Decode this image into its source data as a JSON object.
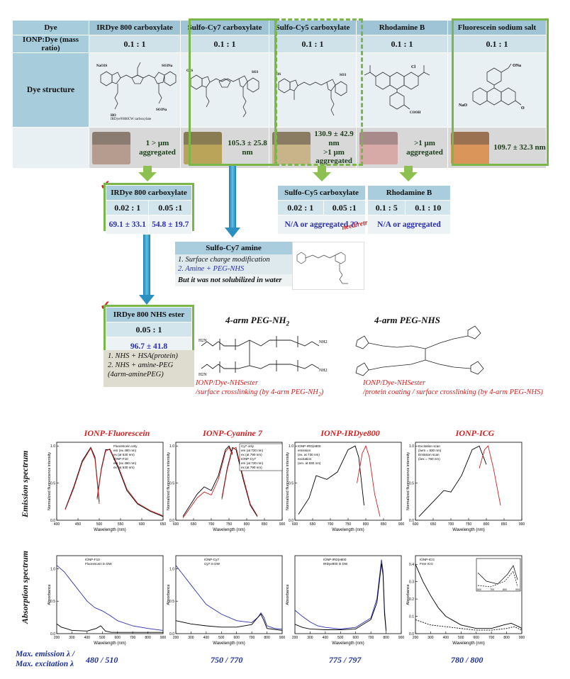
{
  "table": {
    "headers": [
      "Dye",
      "IRDye 800 carboxylate",
      "Sulfo-Cy7 carboxylate",
      "Sulfo-Cy5 carboxylate",
      "Rhodamine  B",
      "Fluorescein sodium salt"
    ],
    "ratio_label": "IONP:Dye  (mass ratio)",
    "ratios": [
      "0.1 : 1",
      "0.1 : 1",
      "0.1 : 1",
      "0.1 : 1",
      "0.1 : 1"
    ],
    "structure_label": "Dye structure",
    "structure_caption": "IRDye®800CW carboxylate",
    "results": [
      [
        "1 > μm",
        "aggregated"
      ],
      [
        "105.3 ± 25.8 nm"
      ],
      [
        "130.9 ± 42.9 nm",
        ">1 μm  aggregated"
      ],
      [
        ">1 μm",
        "aggregated"
      ],
      [
        "109.7 ± 32.3 nm"
      ]
    ],
    "vial_colors": [
      "#b59c8f",
      "#b9a45a",
      "#c9b489",
      "#d7aaa7",
      "#d9955a"
    ]
  },
  "irdye_box": {
    "title": "IRDye  800 carboxylate",
    "ratios": [
      "0.02 : 1",
      "0.05 :1"
    ],
    "values": [
      "69.1 ± 33.1",
      "54.8 ± 19.7"
    ]
  },
  "cy5_box": {
    "title": "Sulfo-Cy5  carboxylate",
    "ratios": [
      "0.02 : 1",
      "0.05 :1"
    ],
    "value": "N/A or aggregated ??",
    "note": "need retry"
  },
  "rhod_box": {
    "title": "Rhodamine  B",
    "ratios": [
      "0.1 : 5",
      "0.1 : 10"
    ],
    "value": "N/A or aggregated"
  },
  "cy7_amine": {
    "title": "Sulfo-Cy7 amine",
    "lines": [
      "1. Surface charge modification",
      "2. Amine + PEG-NHS"
    ],
    "footer": "But it was not solubilized in water"
  },
  "nhs_box": {
    "title": "IRDye  800 NHS ester",
    "ratio": "0.05 : 1",
    "value": "96.7 ± 41.8",
    "notes": [
      "1. NHS + HSA(protein)",
      "2. NHS + amine-PEG",
      "(4arm-aminePEG)"
    ]
  },
  "peg_nh2": {
    "title": "4-arm PEG-NH",
    "sub": "2",
    "caption1": "IONP/Dye-NHSester",
    "caption2": "/surface crosslinking (by 4-arm PEG-NH",
    "caption2_end": ")"
  },
  "peg_nhs": {
    "title": "4-arm PEG-NHS",
    "caption1": "IONP/Dye-NHSester",
    "caption2": "/protein coating / surface crosslinking (by 4-arm PEG-NHS)"
  },
  "row_labels": [
    "Emission spectrum",
    "Absorption spectrum"
  ],
  "plot_titles": [
    "IONP-Fluorescein",
    "IONP-Cyanine 7",
    "IONP-IRDye800",
    "IONP-ICG"
  ],
  "bottom": {
    "label1": "Max. emission λ /",
    "label2": "Max. excitation λ",
    "values": [
      "480 / 510",
      "750 / 770",
      "775 / 797",
      "780 / 800"
    ]
  },
  "colors": {
    "accent_green": "#7ab648",
    "arrow_blue": "#2b8fc0",
    "red": "#d42020",
    "value_blue": "#2a2fb0"
  },
  "chart_data": [
    {
      "type": "line",
      "title": "IONP-Fluorescein",
      "xlabel": "Wavelength (nm)",
      "ylabel": "Normalized fluorescence intensity",
      "xlim": [
        400,
        650
      ],
      "ylim": [
        0,
        1.05
      ],
      "x_ticks": [
        "400",
        "450",
        "500",
        "550",
        "600",
        "650"
      ],
      "y_ticks": [
        "0.0",
        "0.5",
        "1.0"
      ],
      "legend": [
        "Fluorescein only",
        "em (ex 480 nm)",
        "ex (at 530 nm)",
        "IONP-F10",
        "em (ex 480 nm)",
        "ex (at 530 nm)"
      ],
      "series": [
        {
          "name": "em (ex 480 nm)",
          "color": "#000000",
          "x": [
            420,
            440,
            460,
            480,
            490,
            500
          ],
          "y": [
            0.15,
            0.45,
            0.8,
            0.98,
            0.85,
            0.25
          ]
        },
        {
          "name": "ex (at 530 nm)",
          "color": "#000000",
          "x": [
            495,
            505,
            515,
            525,
            545,
            565,
            590,
            620,
            650
          ],
          "y": [
            0.3,
            0.7,
            0.95,
            0.95,
            0.7,
            0.4,
            0.22,
            0.12,
            0.05
          ]
        },
        {
          "name": "em (ex 480 nm)",
          "color": "#cc2020",
          "x": [
            420,
            440,
            460,
            480,
            490,
            500
          ],
          "y": [
            0.14,
            0.43,
            0.78,
            0.97,
            0.82,
            0.22
          ]
        },
        {
          "name": "ex (at 530 nm)",
          "color": "#cc2020",
          "x": [
            495,
            505,
            515,
            525,
            545,
            565,
            590,
            620,
            650
          ],
          "y": [
            0.28,
            0.68,
            0.93,
            0.96,
            0.72,
            0.42,
            0.23,
            0.13,
            0.06
          ]
        }
      ]
    },
    {
      "type": "line",
      "title": "IONP-Cyanine 7",
      "xlabel": "Wavelength (nm)",
      "ylabel": "Normalized fluorescence intensity",
      "xlim": [
        600,
        900
      ],
      "ylim": [
        0,
        1.05
      ],
      "x_ticks": [
        "600",
        "650",
        "700",
        "750",
        "800",
        "850",
        "900"
      ],
      "y_ticks": [
        "0.0",
        "0.5",
        "1.0"
      ],
      "legend": [
        "Cy7 only",
        "em (at 720 nm)",
        "ex (at 790 nm)",
        "IONP-Cy7",
        "em (at 720 nm)",
        "ex (at 790 nm)"
      ],
      "series": [
        {
          "name": "em (at 720 nm)",
          "color": "#000000",
          "x": [
            620,
            660,
            680,
            700,
            720,
            740,
            750,
            760
          ],
          "y": [
            0.05,
            0.35,
            0.45,
            0.4,
            0.6,
            0.95,
            1.0,
            0.9
          ]
        },
        {
          "name": "ex (at 790 nm)",
          "color": "#000000",
          "x": [
            730,
            745,
            760,
            770,
            790,
            810,
            830
          ],
          "y": [
            0.3,
            0.7,
            0.98,
            0.95,
            0.55,
            0.2,
            0.05
          ]
        },
        {
          "name": "em (at 720 nm)",
          "color": "#cc2020",
          "x": [
            620,
            660,
            680,
            700,
            720,
            740,
            750,
            760
          ],
          "y": [
            0.03,
            0.3,
            0.38,
            0.34,
            0.55,
            0.92,
            0.98,
            0.88
          ]
        },
        {
          "name": "ex (at 790 nm)",
          "color": "#cc2020",
          "x": [
            730,
            745,
            760,
            770,
            790,
            810,
            830
          ],
          "y": [
            0.28,
            0.68,
            0.96,
            0.98,
            0.58,
            0.22,
            0.06
          ]
        }
      ]
    },
    {
      "type": "line",
      "title": "IONP-IRDye800",
      "xlabel": "Wavelength (nm)",
      "ylabel": "Normalized fluorescence intensity",
      "xlim": [
        600,
        900
      ],
      "ylim": [
        0,
        1.05
      ],
      "x_ticks": [
        "600",
        "650",
        "700",
        "750",
        "800",
        "850",
        "900"
      ],
      "y_ticks": [
        "0.0",
        "0.5",
        "1.0"
      ],
      "legend": [
        "IONP-IRD(e800",
        "emission",
        "(ex. at 730 nm)",
        "excitation",
        "(em. at 830 nm)"
      ],
      "series": [
        {
          "name": "excitation",
          "color": "#000000",
          "x": [
            610,
            640,
            660,
            690,
            720,
            750,
            770,
            780,
            795
          ],
          "y": [
            0.08,
            0.3,
            0.6,
            0.55,
            0.65,
            0.95,
            1.0,
            0.85,
            0.2
          ]
        },
        {
          "name": "emission",
          "color": "#cc2020",
          "x": [
            775,
            790,
            800,
            810,
            825,
            840
          ],
          "y": [
            0.5,
            0.9,
            1.0,
            0.85,
            0.35,
            0.05
          ]
        }
      ]
    },
    {
      "type": "line",
      "title": "IONP-ICG",
      "xlabel": "Wavelength (nm)",
      "ylabel": "Normalized fluorescence intensity",
      "xlim": [
        600,
        900
      ],
      "ylim": [
        0,
        1.05
      ],
      "x_ticks": [
        "600",
        "650",
        "700",
        "750",
        "800",
        "850",
        "900"
      ],
      "y_ticks": [
        "0.0",
        "0.5",
        "1.0"
      ],
      "legend": [
        "Excitation scan",
        "(λem = 830 nm)",
        "Emission scan",
        "(λex = 760 nm)"
      ],
      "series": [
        {
          "name": "Excitation scan",
          "color": "#000000",
          "x": [
            610,
            650,
            680,
            700,
            730,
            760,
            780,
            800
          ],
          "y": [
            0.05,
            0.25,
            0.4,
            0.38,
            0.6,
            0.95,
            1.0,
            0.75
          ]
        },
        {
          "name": "Emission scan",
          "color": "#cc2020",
          "x": [
            780,
            795,
            805,
            820,
            840
          ],
          "y": [
            0.7,
            0.95,
            1.0,
            0.7,
            0.2
          ]
        }
      ]
    },
    {
      "type": "line",
      "title": "",
      "xlabel": "Wavelength (nm)",
      "ylabel": "Absorbance",
      "xlim": [
        200,
        900
      ],
      "ylim": [
        0,
        1.2
      ],
      "x_ticks": [
        "200",
        "300",
        "400",
        "500",
        "600",
        "700",
        "800",
        "900"
      ],
      "y_ticks": [
        "0.0",
        "0.5",
        "1.0"
      ],
      "legend": [
        "IONP-F10",
        "Fluorescein in DW"
      ],
      "series": [
        {
          "name": "IONP-F10",
          "color": "#2a2fb0",
          "x": [
            200,
            250,
            300,
            350,
            400,
            450,
            500,
            550,
            600,
            700,
            800,
            900
          ],
          "y": [
            1.05,
            0.95,
            0.8,
            0.65,
            0.5,
            0.4,
            0.35,
            0.28,
            0.2,
            0.12,
            0.08,
            0.05
          ]
        },
        {
          "name": "Fluorescein in DW",
          "color": "#000000",
          "x": [
            200,
            230,
            260,
            300,
            400,
            460,
            490,
            520,
            560,
            700,
            900
          ],
          "y": [
            0.15,
            0.1,
            0.08,
            0.05,
            0.04,
            0.08,
            0.12,
            0.04,
            0.02,
            0.02,
            0.02
          ]
        }
      ]
    },
    {
      "type": "line",
      "title": "",
      "xlabel": "Wavelength (nm)",
      "ylabel": "Absorbance",
      "xlim": [
        200,
        900
      ],
      "ylim": [
        0,
        1.2
      ],
      "x_ticks": [
        "200",
        "300",
        "400",
        "500",
        "600",
        "700",
        "800",
        "900"
      ],
      "y_ticks": [
        "0.0",
        "0.5",
        "1.0"
      ],
      "legend": [
        "IONP-Cy7",
        "Cy7 in DW"
      ],
      "series": [
        {
          "name": "IONP-Cy7",
          "color": "#2a2fb0",
          "x": [
            200,
            250,
            300,
            350,
            400,
            500,
            600,
            700,
            740,
            760,
            780,
            800,
            850,
            900
          ],
          "y": [
            1.05,
            0.9,
            0.75,
            0.6,
            0.45,
            0.3,
            0.2,
            0.17,
            0.25,
            0.32,
            0.25,
            0.12,
            0.08,
            0.07
          ]
        },
        {
          "name": "Cy7 in DW",
          "color": "#000000",
          "x": [
            200,
            300,
            400,
            500,
            600,
            700,
            740,
            760,
            780,
            800,
            900
          ],
          "y": [
            0.2,
            0.15,
            0.12,
            0.1,
            0.1,
            0.14,
            0.25,
            0.3,
            0.2,
            0.08,
            0.05
          ]
        }
      ]
    },
    {
      "type": "line",
      "title": "",
      "xlabel": "Wavelength (nm)",
      "ylabel": "Absorbance",
      "xlim": [
        200,
        900
      ],
      "ylim": [
        0,
        1.0
      ],
      "x_ticks": [
        "200",
        "300",
        "400",
        "500",
        "600",
        "700",
        "800",
        "900"
      ],
      "y_ticks": [],
      "legend": [
        "IONP-IRD(e800",
        "IRDye800 in DW"
      ],
      "series": [
        {
          "name": "IONP-IRD(e800",
          "color": "#2a2fb0",
          "x": [
            200,
            250,
            300,
            350,
            400,
            500,
            600,
            700,
            740,
            770,
            780,
            790,
            800
          ],
          "y": [
            0.3,
            0.22,
            0.15,
            0.1,
            0.08,
            0.06,
            0.08,
            0.2,
            0.45,
            0.95,
            0.8,
            0.3,
            0.05
          ]
        },
        {
          "name": "IRDye800 in DW",
          "color": "#000000",
          "x": [
            200,
            250,
            300,
            400,
            500,
            600,
            700,
            740,
            770,
            780,
            790,
            800
          ],
          "y": [
            0.12,
            0.08,
            0.06,
            0.05,
            0.05,
            0.06,
            0.18,
            0.4,
            0.9,
            0.75,
            0.25,
            0.03
          ]
        }
      ]
    },
    {
      "type": "line",
      "title": "",
      "xlabel": "Wavelength (nm)",
      "ylabel": "Absorbance",
      "xlim": [
        200,
        900
      ],
      "ylim": [
        0,
        0.45
      ],
      "x_ticks": [
        "200",
        "300",
        "400",
        "500",
        "600",
        "700",
        "800",
        "900"
      ],
      "y_ticks": [
        "0.0",
        "0.1",
        "0.2",
        "0.3",
        "0.4"
      ],
      "legend": [
        "IONP-ICG",
        "Free ICG"
      ],
      "series": [
        {
          "name": "IONP-ICG",
          "color": "#000000",
          "x": [
            200,
            250,
            300,
            350,
            400,
            500,
            600,
            700,
            780,
            830,
            880,
            900
          ],
          "y": [
            0.4,
            0.3,
            0.22,
            0.15,
            0.1,
            0.05,
            0.03,
            0.03,
            0.05,
            0.06,
            0.04,
            0.03
          ]
        },
        {
          "name": "Free ICG",
          "color": "#000000",
          "dashed": true,
          "x": [
            200,
            300,
            400,
            500,
            600,
            700,
            800,
            850,
            900
          ],
          "y": [
            0.08,
            0.05,
            0.04,
            0.03,
            0.02,
            0.02,
            0.03,
            0.04,
            0.02
          ]
        }
      ],
      "inset": {
        "xlim": [
          600,
          900
        ],
        "x_ticks": [
          "600",
          "700",
          "800",
          "900"
        ]
      }
    }
  ]
}
